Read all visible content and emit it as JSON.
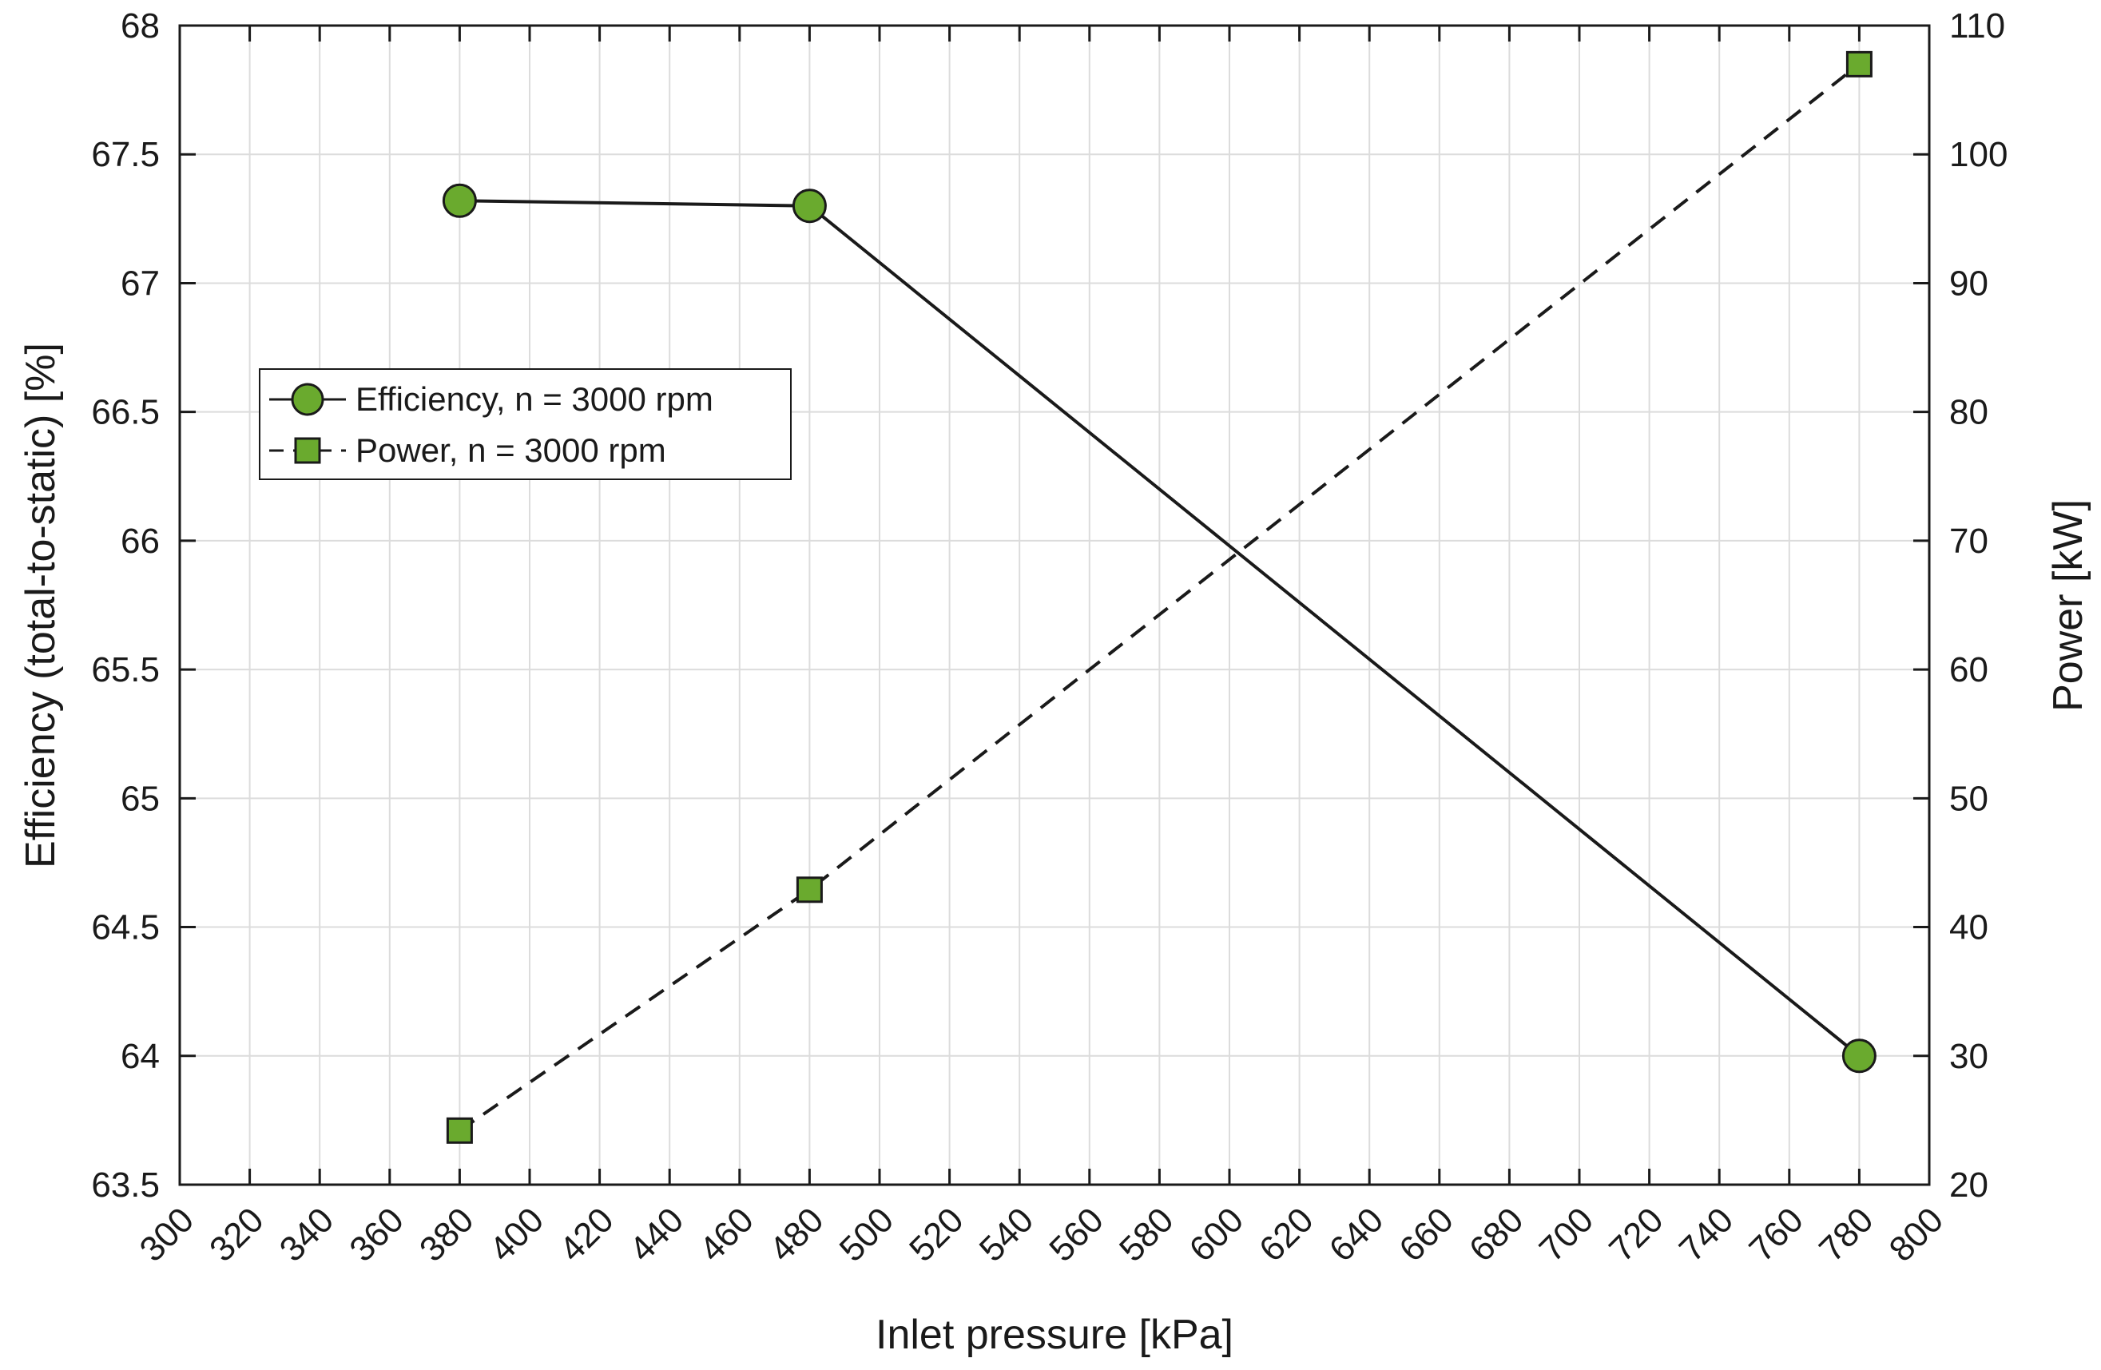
{
  "chart_data": {
    "type": "line",
    "x": [
      380,
      480,
      780
    ],
    "xlabel": "Inlet pressure [kPa]",
    "xlim": [
      300,
      800
    ],
    "xticks": [
      "300",
      "320",
      "340",
      "360",
      "380",
      "400",
      "420",
      "440",
      "460",
      "480",
      "500",
      "520",
      "540",
      "560",
      "580",
      "600",
      "620",
      "640",
      "660",
      "680",
      "700",
      "720",
      "740",
      "760",
      "780",
      "800"
    ],
    "ylabel": "Efficiency (total-to-static) [%]",
    "ylim": [
      63.5,
      68
    ],
    "yticks": [
      "63.5",
      "64",
      "64.5",
      "65",
      "65.5",
      "66",
      "66.5",
      "67",
      "67.5",
      "68"
    ],
    "y2label": "Power [kW]",
    "y2lim": [
      20,
      110
    ],
    "y2ticks": [
      "20",
      "30",
      "40",
      "50",
      "60",
      "70",
      "80",
      "90",
      "100",
      "110"
    ],
    "grid": true,
    "legend_position": "upper-left",
    "series": [
      {
        "name": "Efficiency, n = 3000 rpm",
        "axis": "left",
        "values": [
          67.32,
          67.3,
          64.0
        ],
        "marker": "circle",
        "line": "solid",
        "color": "#6aaa2e"
      },
      {
        "name": "Power, n = 3000 rpm",
        "axis": "right",
        "values": [
          24.2,
          42.9,
          107.0
        ],
        "marker": "square",
        "line": "dashed",
        "color": "#6aaa2e"
      }
    ]
  }
}
